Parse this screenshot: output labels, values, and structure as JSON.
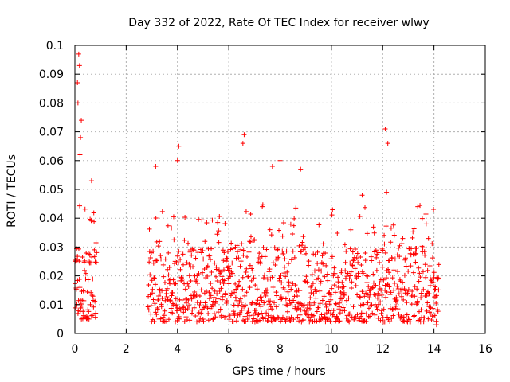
{
  "chart_data": {
    "type": "scatter",
    "title": "Day 332 of 2022, Rate Of TEC Index for receiver wlwy",
    "xlabel": "GPS time / hours",
    "ylabel": "ROTI / TECUs",
    "xlim": [
      0,
      16
    ],
    "ylim": [
      0,
      0.1
    ],
    "x_ticks": [
      "0",
      "2",
      "4",
      "6",
      "8",
      "10",
      "12",
      "14",
      "16"
    ],
    "y_ticks": [
      "0",
      "0.01",
      "0.02",
      "0.03",
      "0.04",
      "0.05",
      "0.06",
      "0.07",
      "0.08",
      "0.09",
      "0.1"
    ],
    "grid": true,
    "marker": "+",
    "color": "#ff0000",
    "segments": [
      {
        "x_start": 0.0,
        "x_end": 0.85,
        "typical_range": [
          0.005,
          0.03
        ],
        "max": 0.097
      },
      {
        "x_start": 2.85,
        "x_end": 14.2,
        "typical_range": [
          0.004,
          0.03
        ],
        "max": 0.071
      }
    ],
    "notable_points": [
      {
        "x": 0.15,
        "y": 0.097
      },
      {
        "x": 0.18,
        "y": 0.093
      },
      {
        "x": 0.1,
        "y": 0.087
      },
      {
        "x": 0.12,
        "y": 0.08
      },
      {
        "x": 0.25,
        "y": 0.074
      },
      {
        "x": 0.22,
        "y": 0.068
      },
      {
        "x": 0.2,
        "y": 0.062
      },
      {
        "x": 0.65,
        "y": 0.053
      },
      {
        "x": 3.15,
        "y": 0.058
      },
      {
        "x": 4.05,
        "y": 0.065
      },
      {
        "x": 4.0,
        "y": 0.06
      },
      {
        "x": 6.6,
        "y": 0.069
      },
      {
        "x": 6.55,
        "y": 0.066
      },
      {
        "x": 7.7,
        "y": 0.058
      },
      {
        "x": 8.0,
        "y": 0.06
      },
      {
        "x": 8.8,
        "y": 0.057
      },
      {
        "x": 12.1,
        "y": 0.071
      },
      {
        "x": 12.2,
        "y": 0.066
      },
      {
        "x": 12.15,
        "y": 0.049
      },
      {
        "x": 11.2,
        "y": 0.048
      },
      {
        "x": 14.1,
        "y": 0.003
      }
    ]
  }
}
